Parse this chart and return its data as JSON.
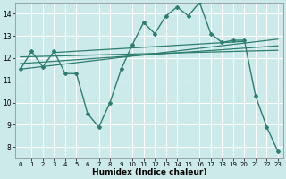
{
  "title": "",
  "xlabel": "Humidex (Indice chaleur)",
  "bg_color": "#cceaea",
  "grid_color": "#ffffff",
  "line_color": "#2e7d6e",
  "xlim": [
    -0.5,
    23.5
  ],
  "ylim": [
    7.5,
    14.5
  ],
  "yticks": [
    8,
    9,
    10,
    11,
    12,
    13,
    14
  ],
  "xticks": [
    0,
    1,
    2,
    3,
    4,
    5,
    6,
    7,
    8,
    9,
    10,
    11,
    12,
    13,
    14,
    15,
    16,
    17,
    18,
    19,
    20,
    21,
    22,
    23
  ],
  "series1_x": [
    0,
    1,
    2,
    3,
    4,
    5,
    6,
    7,
    8,
    9,
    10,
    11,
    12,
    13,
    14,
    15,
    16,
    17,
    18,
    19,
    20,
    21,
    22,
    23
  ],
  "series1_y": [
    11.5,
    12.3,
    11.6,
    12.3,
    11.3,
    11.3,
    9.5,
    8.9,
    10.0,
    11.5,
    12.6,
    13.6,
    13.1,
    13.9,
    14.3,
    13.9,
    14.5,
    13.1,
    12.7,
    12.8,
    12.8,
    10.3,
    8.9,
    7.8
  ],
  "trend1_x": [
    0,
    23
  ],
  "trend1_y": [
    11.5,
    12.85
  ],
  "trend2_x": [
    0,
    23
  ],
  "trend2_y": [
    11.75,
    12.55
  ],
  "trend3_x": [
    0,
    23
  ],
  "trend3_y": [
    12.05,
    12.35
  ],
  "trend4_x": [
    3,
    20
  ],
  "trend4_y": [
    12.25,
    12.75
  ]
}
